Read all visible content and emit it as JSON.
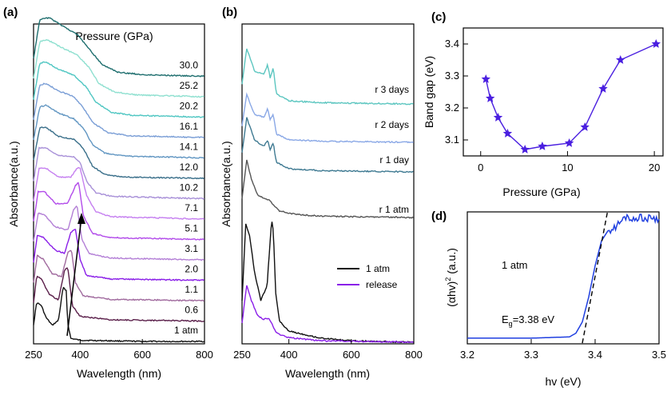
{
  "colors": {
    "1 atm": "#111111",
    "0.6": "#5a1f4a",
    "1.1": "#a06a9e",
    "2.0": "#8a1ee8",
    "3.1": "#b37fd6",
    "5.1": "#b24bea",
    "7.1": "#c57ff0",
    "10.2": "#a890d8",
    "12.0": "#3a6f8a",
    "14.1": "#6196c2",
    "16.1": "#7a9ed6",
    "20.2": "#4fc6c2",
    "25.2": "#8fe0d0",
    "30.0": "#1e6e6e",
    "release": "#8a1ee8",
    "r 1 day": "#3f7a92",
    "r 2 days": "#8aa8e6",
    "r 3 days": "#5cc6c0",
    "bandgap": "#4a1fe0",
    "tauc": "#1f3fe0"
  },
  "panels": {
    "a": {
      "letter": "(a)",
      "xlabel": "Wavelength (nm)",
      "ylabel": "Absorbance(a.u.)",
      "legend_title": "Pressure (GPa)",
      "xticks": [
        "250",
        "400",
        "600",
        "800"
      ],
      "curve_labels": [
        "30.0",
        "25.2",
        "20.2",
        "16.1",
        "14.1",
        "12.0",
        "10.2",
        "7.1",
        "5.1",
        "3.1",
        "2.0",
        "1.1",
        "0.6",
        "1 atm"
      ]
    },
    "b": {
      "letter": "(b)",
      "xlabel": "Wavelength (nm)",
      "ylabel": "Absorbance(a.u.)",
      "xticks": [
        "250",
        "400",
        "600",
        "800"
      ],
      "curve_labels": [
        "r 3 days",
        "r 2 days",
        "r 1 day",
        "r 1 atm"
      ],
      "legend": [
        "1 atm",
        "release"
      ]
    },
    "c": {
      "letter": "(c)",
      "xlabel": "Pressure (GPa)",
      "ylabel": "Band gap (eV)",
      "xticks": [
        "0",
        "10",
        "20"
      ],
      "yticks": [
        "3.1",
        "3.2",
        "3.3",
        "3.4"
      ]
    },
    "d": {
      "letter": "(d)",
      "xlabel": "hv (eV)",
      "ylabel_main": "(αhv)",
      "ylabel_sup": "2",
      "ylabel_tail": " (a.u.)",
      "annotation": "1 atm",
      "eg_prefix": "E",
      "eg_sub": "g",
      "eg_value": "=3.38 eV",
      "xticks": [
        "3.2",
        "3.3",
        "3.4",
        "3.5"
      ]
    }
  },
  "chart_data": [
    {
      "panel": "a",
      "type": "line",
      "xlabel": "Wavelength (nm)",
      "ylabel": "Absorbance(a.u.)",
      "legend_title": "Pressure (GPa)",
      "xlim": [
        250,
        800
      ],
      "series": [
        {
          "name": "1 atm",
          "x": [
            250,
            260,
            275,
            290,
            310,
            330,
            345,
            355,
            360,
            370,
            400,
            500,
            600,
            800
          ],
          "y": [
            0.28,
            0.65,
            0.6,
            0.4,
            0.27,
            0.35,
            0.9,
            0.85,
            0.3,
            0.05,
            0.02,
            0.01,
            0.0,
            0.0
          ]
        },
        {
          "name": "0.6",
          "x": [
            250,
            260,
            275,
            300,
            330,
            350,
            360,
            375,
            400,
            500,
            800
          ],
          "y": [
            0.3,
            0.75,
            0.7,
            0.45,
            0.35,
            0.85,
            0.9,
            0.25,
            0.08,
            0.02,
            0.0
          ]
        },
        {
          "name": "1.1",
          "x": [
            250,
            262,
            280,
            310,
            340,
            360,
            372,
            385,
            410,
            500,
            800
          ],
          "y": [
            0.3,
            0.75,
            0.7,
            0.45,
            0.4,
            0.8,
            0.85,
            0.3,
            0.08,
            0.02,
            0.0
          ]
        },
        {
          "name": "2.0",
          "x": [
            250,
            262,
            280,
            320,
            350,
            370,
            385,
            400,
            420,
            500,
            800
          ],
          "y": [
            0.3,
            0.75,
            0.72,
            0.5,
            0.45,
            0.8,
            0.85,
            0.35,
            0.08,
            0.02,
            0.0
          ]
        },
        {
          "name": "3.1",
          "x": [
            250,
            265,
            285,
            320,
            360,
            380,
            390,
            405,
            430,
            500,
            800
          ],
          "y": [
            0.3,
            0.78,
            0.75,
            0.55,
            0.5,
            0.85,
            0.9,
            0.35,
            0.1,
            0.03,
            0.0
          ]
        },
        {
          "name": "5.1",
          "x": [
            250,
            265,
            285,
            320,
            360,
            385,
            395,
            410,
            440,
            500,
            800
          ],
          "y": [
            0.3,
            0.8,
            0.8,
            0.6,
            0.6,
            0.9,
            0.95,
            0.4,
            0.1,
            0.03,
            0.0
          ]
        },
        {
          "name": "7.1",
          "x": [
            250,
            268,
            290,
            330,
            370,
            390,
            400,
            420,
            450,
            500,
            800
          ],
          "y": [
            0.3,
            0.85,
            0.85,
            0.7,
            0.7,
            0.85,
            0.85,
            0.4,
            0.12,
            0.04,
            0.0
          ]
        },
        {
          "name": "10.2",
          "x": [
            250,
            268,
            290,
            330,
            380,
            400,
            420,
            450,
            500,
            800
          ],
          "y": [
            0.3,
            0.85,
            0.85,
            0.72,
            0.7,
            0.6,
            0.3,
            0.1,
            0.04,
            0.0
          ]
        },
        {
          "name": "12.0",
          "x": [
            250,
            270,
            290,
            330,
            380,
            410,
            440,
            480,
            550,
            800
          ],
          "y": [
            0.3,
            0.85,
            0.85,
            0.7,
            0.65,
            0.5,
            0.2,
            0.06,
            0.02,
            0.0
          ]
        },
        {
          "name": "14.1",
          "x": [
            250,
            270,
            290,
            330,
            380,
            410,
            440,
            480,
            550,
            800
          ],
          "y": [
            0.3,
            0.85,
            0.88,
            0.75,
            0.65,
            0.5,
            0.22,
            0.08,
            0.03,
            0.0
          ]
        },
        {
          "name": "16.1",
          "x": [
            250,
            270,
            290,
            330,
            380,
            410,
            440,
            490,
            560,
            800
          ],
          "y": [
            0.3,
            0.88,
            0.9,
            0.78,
            0.68,
            0.5,
            0.25,
            0.08,
            0.03,
            0.0
          ]
        },
        {
          "name": "20.2",
          "x": [
            250,
            270,
            290,
            330,
            380,
            420,
            450,
            500,
            570,
            800
          ],
          "y": [
            0.3,
            0.9,
            0.92,
            0.8,
            0.7,
            0.5,
            0.25,
            0.08,
            0.03,
            0.0
          ]
        },
        {
          "name": "25.2",
          "x": [
            250,
            270,
            295,
            340,
            390,
            430,
            460,
            510,
            580,
            800
          ],
          "y": [
            0.3,
            0.92,
            0.95,
            0.82,
            0.7,
            0.48,
            0.22,
            0.08,
            0.03,
            0.0
          ]
        },
        {
          "name": "30.0",
          "x": [
            250,
            270,
            300,
            340,
            390,
            430,
            470,
            520,
            600,
            800
          ],
          "y": [
            0.3,
            0.95,
            0.98,
            0.85,
            0.7,
            0.45,
            0.2,
            0.07,
            0.03,
            0.0
          ]
        }
      ]
    },
    {
      "panel": "b",
      "type": "line",
      "xlabel": "Wavelength (nm)",
      "ylabel": "Absorbance(a.u.)",
      "xlim": [
        250,
        800
      ],
      "legend": [
        "1 atm",
        "release"
      ],
      "series": [
        {
          "name": "1 atm",
          "x": [
            250,
            262,
            275,
            290,
            310,
            330,
            345,
            350,
            358,
            370,
            400,
            500,
            600,
            800
          ],
          "y": [
            0.3,
            0.85,
            0.75,
            0.5,
            0.3,
            0.4,
            0.88,
            0.8,
            0.35,
            0.15,
            0.08,
            0.03,
            0.01,
            0.0
          ]
        },
        {
          "name": "release",
          "x": [
            250,
            265,
            280,
            300,
            320,
            335,
            345,
            360,
            400,
            500,
            800
          ],
          "y": [
            0.25,
            0.75,
            0.55,
            0.35,
            0.3,
            0.32,
            0.25,
            0.12,
            0.06,
            0.02,
            0.0
          ]
        },
        {
          "name": "r 1 atm",
          "x": [
            250,
            265,
            280,
            300,
            320,
            335,
            350,
            370,
            420,
            500,
            800
          ],
          "y": [
            0.3,
            0.9,
            0.6,
            0.35,
            0.3,
            0.28,
            0.2,
            0.1,
            0.05,
            0.02,
            0.0
          ]
        },
        {
          "name": "r 1 day",
          "x": [
            250,
            265,
            290,
            320,
            332,
            340,
            350,
            360,
            400,
            500,
            800
          ],
          "y": [
            0.3,
            0.85,
            0.5,
            0.4,
            0.5,
            0.35,
            0.45,
            0.15,
            0.05,
            0.02,
            0.0
          ]
        },
        {
          "name": "r 2 days",
          "x": [
            250,
            265,
            290,
            320,
            332,
            340,
            350,
            360,
            400,
            500,
            800
          ],
          "y": [
            0.3,
            0.85,
            0.5,
            0.45,
            0.6,
            0.4,
            0.5,
            0.15,
            0.05,
            0.02,
            0.0
          ]
        },
        {
          "name": "r 3 days",
          "x": [
            250,
            265,
            290,
            320,
            332,
            340,
            350,
            360,
            400,
            500,
            800
          ],
          "y": [
            0.3,
            0.85,
            0.5,
            0.45,
            0.6,
            0.4,
            0.55,
            0.15,
            0.05,
            0.02,
            0.0
          ]
        }
      ]
    },
    {
      "panel": "c",
      "type": "line",
      "xlabel": "Pressure (GPa)",
      "ylabel": "Band gap (eV)",
      "xlim": [
        -2,
        21
      ],
      "ylim": [
        3.05,
        3.45
      ],
      "marker": "star",
      "x": [
        0.6,
        1.1,
        2.0,
        3.1,
        5.1,
        7.1,
        10.2,
        12.0,
        14.1,
        16.1,
        20.2
      ],
      "y": [
        3.29,
        3.23,
        3.17,
        3.12,
        3.07,
        3.08,
        3.09,
        3.14,
        3.26,
        3.35,
        3.4
      ]
    },
    {
      "panel": "d",
      "type": "line",
      "xlabel": "hv (eV)",
      "ylabel": "(αhv)2 (a.u.)",
      "xlim": [
        3.2,
        3.5
      ],
      "x": [
        3.2,
        3.3,
        3.36,
        3.37,
        3.38,
        3.39,
        3.4,
        3.41,
        3.42,
        3.43,
        3.44,
        3.45,
        3.46,
        3.47,
        3.48,
        3.49,
        3.5
      ],
      "y": [
        0.02,
        0.02,
        0.03,
        0.06,
        0.15,
        0.35,
        0.6,
        0.8,
        0.88,
        0.9,
        0.95,
        1.0,
        0.96,
        1.0,
        0.97,
        0.99,
        0.96
      ],
      "fit_line": {
        "x": [
          3.38,
          3.42
        ],
        "y": [
          -0.02,
          1.05
        ]
      },
      "Eg": 3.38
    }
  ]
}
